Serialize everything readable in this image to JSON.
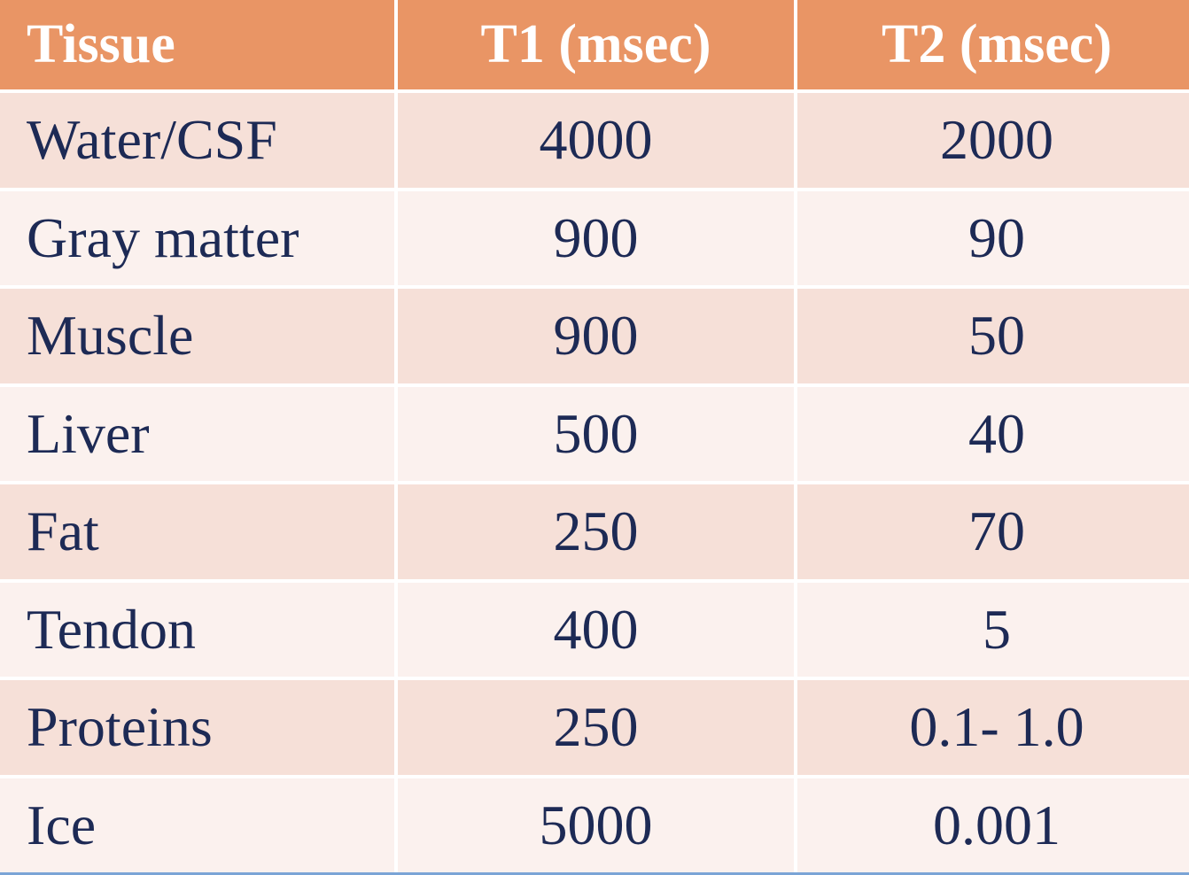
{
  "table": {
    "headers": [
      "Tissue",
      "T1 (msec)",
      "T2 (msec)"
    ],
    "rows": [
      [
        "Water/CSF",
        "4000",
        "2000"
      ],
      [
        "Gray matter",
        "900",
        "90"
      ],
      [
        "Muscle",
        "900",
        "50"
      ],
      [
        "Liver",
        "500",
        "40"
      ],
      [
        "Fat",
        "250",
        "70"
      ],
      [
        "Tendon",
        "400",
        "5"
      ],
      [
        "Proteins",
        "250",
        "0.1- 1.0"
      ],
      [
        "Ice",
        "5000",
        "0.001"
      ]
    ]
  },
  "colors": {
    "header_bg": "#e99565",
    "header_text": "#ffffff",
    "row_dark": "#f6e0d8",
    "row_light": "#fbf1ee",
    "body_text": "#1d2a55"
  }
}
